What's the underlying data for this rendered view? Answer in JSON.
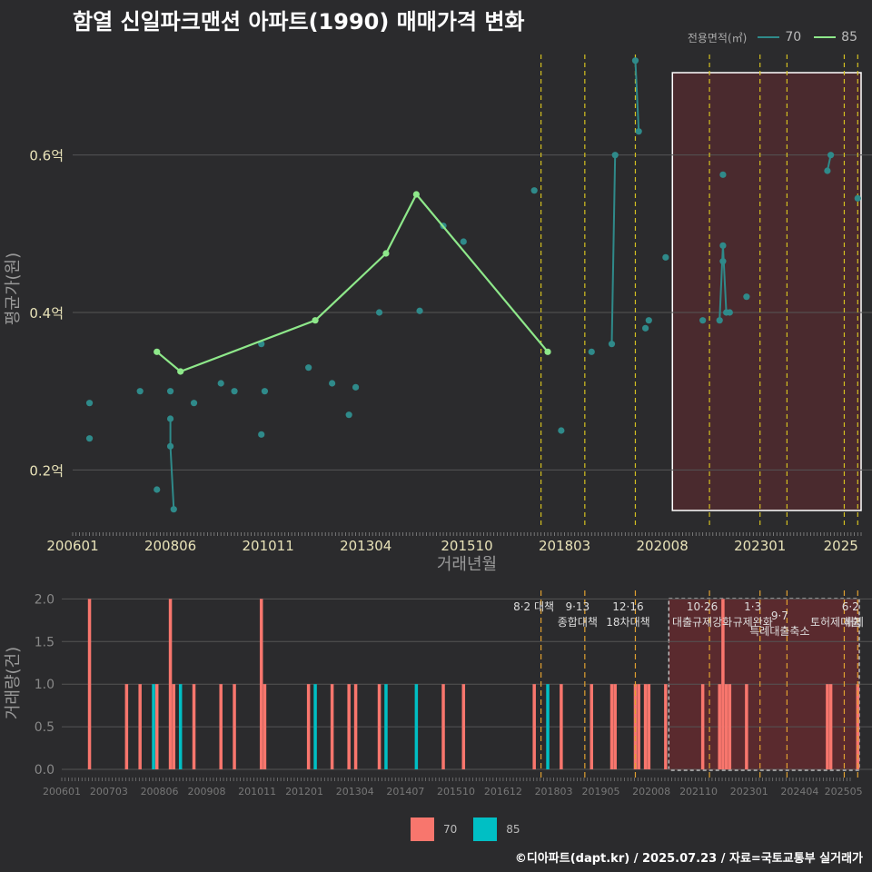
{
  "title": "함열 신일파크맨션 아파트(1990) 매매가격 변화",
  "credit": "©디아파트(dapt.kr) / 2025.07.23 / 자료=국토교통부 실거래가",
  "colors": {
    "background": "#2b2b2d",
    "grid": "#555555",
    "s70_line": "#2f8a8a",
    "s85_line": "#8ee88a",
    "bar70": "#f8766d",
    "bar85": "#00bfc4",
    "policy_line": "#d4c020",
    "highlight_fill": "#4a2a2e",
    "axis_text": "#e8e2b8",
    "axis_title": "#999999"
  },
  "legend_top": {
    "title": "전용면적(㎡)",
    "items": [
      {
        "label": "70",
        "color": "#2f8a8a"
      },
      {
        "label": "85",
        "color": "#8ee88a"
      }
    ]
  },
  "legend_bottom": {
    "items": [
      {
        "label": "70",
        "color": "#f8766d"
      },
      {
        "label": "85",
        "color": "#00bfc4"
      }
    ]
  },
  "chart_data": [
    {
      "type": "line",
      "ylabel": "평균가(원)",
      "xlabel": "거래년월",
      "x_range": [
        "2006-01",
        "2025-07"
      ],
      "x_ticks": [
        "200601",
        "200806",
        "201011",
        "201304",
        "201510",
        "201803",
        "202008",
        "202301",
        "2025"
      ],
      "y_ticks": [
        "0.2억",
        "0.4억",
        "0.6억"
      ],
      "y_tick_values": [
        0.2,
        0.4,
        0.6
      ],
      "ylim": [
        0.13,
        0.73
      ],
      "grid": true,
      "legend_position": "top-right",
      "series": [
        {
          "name": "70",
          "points": [
            [
              "2006-06",
              0.285
            ],
            [
              "2006-06",
              0.24
            ],
            [
              "2007-09",
              0.3
            ],
            [
              "2008-02",
              0.175
            ],
            [
              "2008-06",
              0.3
            ],
            [
              "2008-06",
              0.265
            ],
            [
              "2008-06",
              0.23
            ],
            [
              "2008-07",
              0.15
            ],
            [
              "2009-01",
              0.285
            ],
            [
              "2009-09",
              0.31
            ],
            [
              "2010-01",
              0.3
            ],
            [
              "2010-09",
              0.36
            ],
            [
              "2010-09",
              0.245
            ],
            [
              "2010-10",
              0.3
            ],
            [
              "2011-11",
              0.33
            ],
            [
              "2012-06",
              0.31
            ],
            [
              "2012-11",
              0.27
            ],
            [
              "2013-01",
              0.305
            ],
            [
              "2013-08",
              0.4
            ],
            [
              "2014-08",
              0.402
            ],
            [
              "2015-03",
              0.51
            ],
            [
              "2015-09",
              0.49
            ],
            [
              "2017-06",
              0.555
            ],
            [
              "2018-02",
              0.25
            ],
            [
              "2018-11",
              0.35
            ],
            [
              "2019-05",
              0.36
            ],
            [
              "2019-06",
              0.6
            ],
            [
              "2019-12",
              0.72
            ],
            [
              "2020-01",
              0.63
            ],
            [
              "2020-03",
              0.38
            ],
            [
              "2020-04",
              0.39
            ],
            [
              "2020-09",
              0.47
            ],
            [
              "2021-08",
              0.39
            ],
            [
              "2022-01",
              0.39
            ],
            [
              "2022-02",
              0.575
            ],
            [
              "2022-02",
              0.485
            ],
            [
              "2022-02",
              0.465
            ],
            [
              "2022-03",
              0.4
            ],
            [
              "2022-04",
              0.4
            ],
            [
              "2022-09",
              0.42
            ],
            [
              "2024-09",
              0.58
            ],
            [
              "2024-10",
              0.6
            ],
            [
              "2025-06",
              0.545
            ]
          ],
          "connected_runs": [
            [
              [
                "2008-06",
                0.265
              ],
              [
                "2008-06",
                0.23
              ],
              [
                "2008-07",
                0.15
              ]
            ],
            [
              [
                "2019-05",
                0.36
              ],
              [
                "2019-06",
                0.6
              ]
            ],
            [
              [
                "2019-12",
                0.72
              ],
              [
                "2020-01",
                0.63
              ]
            ],
            [
              [
                "2022-01",
                0.39
              ],
              [
                "2022-02",
                0.485
              ],
              [
                "2022-03",
                0.4
              ],
              [
                "2022-04",
                0.4
              ]
            ],
            [
              [
                "2024-09",
                0.58
              ],
              [
                "2024-10",
                0.6
              ]
            ]
          ]
        },
        {
          "name": "85",
          "points": [
            [
              "2008-02",
              0.35
            ],
            [
              "2008-09",
              0.325
            ],
            [
              "2012-01",
              0.39
            ],
            [
              "2013-10",
              0.475
            ],
            [
              "2014-07",
              0.55
            ],
            [
              "2017-10",
              0.35
            ]
          ]
        }
      ]
    },
    {
      "type": "bar",
      "ylabel": "거래량(건)",
      "x_range": [
        "2006-01",
        "2025-07"
      ],
      "x_ticks": [
        "200601",
        "200703",
        "200806",
        "200908",
        "201011",
        "201201",
        "201304",
        "201407",
        "201510",
        "201612",
        "201803",
        "201905",
        "202008",
        "202110",
        "202301",
        "202404",
        "202505"
      ],
      "y_ticks": [
        "0.0",
        "0.5",
        "1.0",
        "1.5",
        "2.0"
      ],
      "y_tick_values": [
        0,
        0.5,
        1.0,
        1.5,
        2.0
      ],
      "ylim": [
        0,
        2.1
      ],
      "grid": true,
      "series": [
        {
          "name": "70",
          "bars": [
            [
              "2006-06",
              2
            ],
            [
              "2007-05",
              1
            ],
            [
              "2007-09",
              1
            ],
            [
              "2008-02",
              1
            ],
            [
              "2008-06",
              2
            ],
            [
              "2008-07",
              1
            ],
            [
              "2009-01",
              1
            ],
            [
              "2009-09",
              1
            ],
            [
              "2010-01",
              1
            ],
            [
              "2010-09",
              2
            ],
            [
              "2010-10",
              1
            ],
            [
              "2011-11",
              1
            ],
            [
              "2012-06",
              1
            ],
            [
              "2012-11",
              1
            ],
            [
              "2013-01",
              1
            ],
            [
              "2013-08",
              1
            ],
            [
              "2015-03",
              1
            ],
            [
              "2015-09",
              1
            ],
            [
              "2017-06",
              1
            ],
            [
              "2018-02",
              1
            ],
            [
              "2018-11",
              1
            ],
            [
              "2019-05",
              1
            ],
            [
              "2019-06",
              1
            ],
            [
              "2019-12",
              1
            ],
            [
              "2020-01",
              1
            ],
            [
              "2020-03",
              1
            ],
            [
              "2020-04",
              1
            ],
            [
              "2020-09",
              1
            ],
            [
              "2021-08",
              1
            ],
            [
              "2022-01",
              1
            ],
            [
              "2022-02",
              2
            ],
            [
              "2022-03",
              1
            ],
            [
              "2022-04",
              1
            ],
            [
              "2022-09",
              1
            ],
            [
              "2024-09",
              1
            ],
            [
              "2024-10",
              1
            ],
            [
              "2025-06",
              1
            ]
          ]
        },
        {
          "name": "85",
          "bars": [
            [
              "2008-01",
              1
            ],
            [
              "2008-09",
              1
            ],
            [
              "2012-01",
              1
            ],
            [
              "2013-10",
              1
            ],
            [
              "2014-07",
              1
            ],
            [
              "2017-10",
              1
            ]
          ]
        }
      ]
    }
  ],
  "policies": [
    {
      "date": "2017-08",
      "lines": [
        "8·2 대책"
      ]
    },
    {
      "date": "2018-09",
      "lines": [
        "9·13",
        "종합대책"
      ]
    },
    {
      "date": "2019-12",
      "lines": [
        "12·16",
        "18차대책"
      ]
    },
    {
      "date": "2021-10",
      "lines": [
        "10·26",
        "대출규제강화"
      ]
    },
    {
      "date": "2023-01",
      "lines": [
        "1·3",
        "규제완화"
      ]
    },
    {
      "date": "2023-09",
      "lines": [
        "9·7",
        "특례대출축소"
      ]
    },
    {
      "date": "2025-02",
      "lines": [
        "",
        "토허제 해제"
      ]
    },
    {
      "date": "2025-06",
      "lines": [
        "6·2",
        "대출"
      ]
    }
  ],
  "highlight_range": [
    "2020-11",
    "2025-07"
  ]
}
